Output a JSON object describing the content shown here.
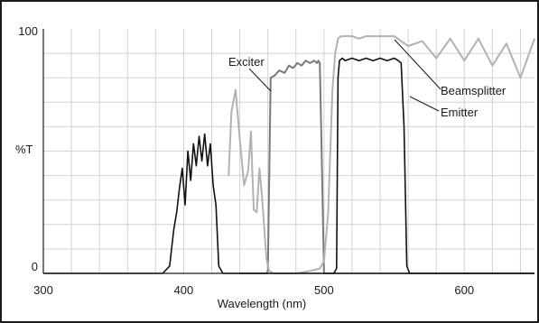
{
  "chart_data": {
    "type": "line",
    "title": "",
    "xlabel": "Wavelength (nm)",
    "ylabel": "%T",
    "xlim": [
      300,
      650
    ],
    "ylim": [
      0,
      100
    ],
    "x_ticks": [
      300,
      400,
      500,
      600
    ],
    "y_ticks": [
      0,
      100
    ],
    "grid": true,
    "legend": "none",
    "series": [
      {
        "name": "Exciter",
        "color": "#7a7a7a",
        "x": [
          440,
          455,
          459,
          460,
          462,
          465,
          468,
          472,
          475,
          478,
          481,
          484,
          487,
          490,
          493,
          495,
          496,
          497,
          498,
          500,
          502,
          520,
          560,
          600,
          650
        ],
        "y": [
          0,
          0,
          0,
          1,
          80,
          81,
          83,
          82,
          85,
          84,
          86,
          85,
          87,
          86,
          87,
          86,
          87,
          86,
          60,
          0,
          0,
          0,
          0,
          0,
          0
        ]
      },
      {
        "name": "Beamsplitter",
        "color": "#b2b2b2",
        "x": [
          432,
          434,
          437,
          440,
          443,
          446,
          448,
          449,
          450,
          452,
          454,
          456,
          459,
          461,
          464,
          470,
          480,
          490,
          497,
          500,
          503,
          506,
          508,
          510,
          512,
          515,
          520,
          525,
          530,
          535,
          540,
          545,
          550,
          555,
          560,
          570,
          580,
          590,
          600,
          610,
          620,
          630,
          640,
          650
        ],
        "y": [
          40,
          66,
          75,
          55,
          36,
          42,
          58,
          40,
          26,
          25,
          43,
          30,
          6,
          1,
          0,
          0,
          0,
          1,
          2,
          5,
          25,
          75,
          90,
          96,
          97,
          97,
          97,
          96,
          97,
          97,
          97,
          97,
          97,
          95,
          93,
          95,
          88,
          96,
          87,
          96,
          85,
          94,
          80,
          96
        ]
      },
      {
        "name": "Emitter",
        "color": "#111111",
        "x": [
          300,
          385,
          390,
          393,
          395,
          397,
          399,
          401,
          403,
          405,
          407,
          409,
          411,
          413,
          415,
          417,
          419,
          421,
          423,
          425,
          428,
          430,
          435,
          500,
          507,
          509,
          510,
          511,
          513,
          515,
          520,
          525,
          530,
          535,
          540,
          545,
          550,
          553,
          555,
          557,
          559,
          561,
          565,
          600,
          650
        ],
        "y": [
          0,
          0,
          3,
          18,
          25,
          35,
          43,
          28,
          50,
          38,
          53,
          44,
          56,
          46,
          57,
          44,
          53,
          36,
          28,
          3,
          0,
          0,
          0,
          0,
          0,
          2,
          80,
          87,
          88,
          87,
          88,
          87,
          88,
          87,
          88,
          87,
          88,
          87,
          86,
          60,
          3,
          0,
          0,
          0,
          0
        ]
      }
    ],
    "annotations": [
      "Exciter",
      "Beamsplitter",
      "Emitter"
    ]
  }
}
